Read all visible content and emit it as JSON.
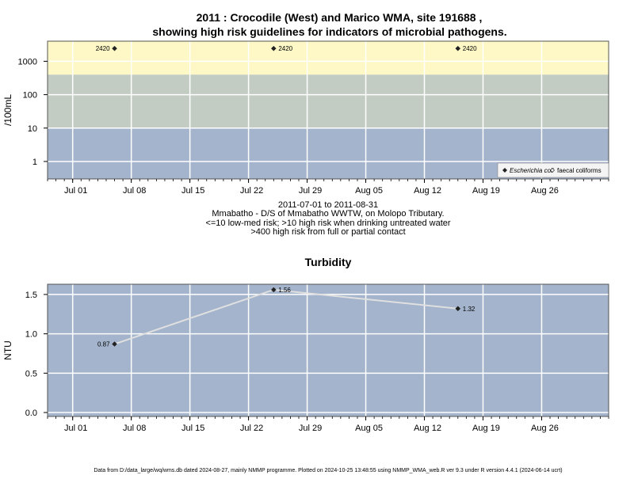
{
  "top_title_line1": "2011 : Crocodile (West) and Marico WMA, site 191688 ,",
  "top_title_line2": "showing high risk guidelines for indicators of microbial pathogens.",
  "caption_lines": [
    "2011-07-01 to 2011-08-31",
    "Mmabatho - D/S of Mmabatho WWTW, on Molopo Tributary.",
    "<=10 low-med risk; >10 high risk when drinking untreated water",
    ">400 high risk from full or partial contact"
  ],
  "footer": "Data from D:/data_large/wq/wms.db dated 2024-08-27, mainly NMMP programme. Plotted on 2024-10-25 13:48:55 using NMMP_WMA_web.R ver 9.3 under R version 4.4.1 (2024-06-14 ucrt)",
  "colors": {
    "band_high": "#fdf8c6",
    "band_mid": "#c3ccc3",
    "band_low": "#a3b4cc",
    "line": "#e0e0e0",
    "point": "#222222"
  },
  "chart_data": [
    {
      "type": "scatter",
      "ylabel": "/100mL",
      "yscale": "log",
      "yticks": [
        1,
        10,
        100,
        1000
      ],
      "ylim": [
        0.3,
        4000
      ],
      "xlim": [
        "2011-06-28",
        "2011-09-03"
      ],
      "xticks": [
        "Jul 01",
        "Jul 08",
        "Jul 15",
        "Jul 22",
        "Jul 29",
        "Aug 05",
        "Aug 12",
        "Aug 19",
        "Aug 26"
      ],
      "xtick_dates": [
        "2011-07-01",
        "2011-07-08",
        "2011-07-15",
        "2011-07-22",
        "2011-07-29",
        "2011-08-05",
        "2011-08-12",
        "2011-08-19",
        "2011-08-26"
      ],
      "bands": [
        {
          "from": 0.3,
          "to": 10,
          "color": "#a3b4cc"
        },
        {
          "from": 10,
          "to": 400,
          "color": "#c3ccc3"
        },
        {
          "from": 400,
          "to": 4000,
          "color": "#fdf8c6"
        }
      ],
      "legend_position": "bottom-right",
      "series": [
        {
          "name": "Escherichia coli",
          "marker": "filled-diamond",
          "x": [
            "2011-07-06",
            "2011-07-25",
            "2011-08-16"
          ],
          "y": [
            2420,
            2420,
            2420
          ],
          "labels": [
            "2420",
            "2420",
            "2420"
          ]
        },
        {
          "name": "faecal coliforms",
          "marker": "open-diamond",
          "x": [],
          "y": [],
          "labels": []
        }
      ]
    },
    {
      "type": "line",
      "title": "Turbidity",
      "ylabel": "NTU",
      "yticks": [
        0.0,
        0.5,
        1.0,
        1.5
      ],
      "ytick_labels": [
        "0.0",
        "0.5",
        "1.0",
        "1.5"
      ],
      "ylim": [
        -0.05,
        1.63
      ],
      "xlim": [
        "2011-06-28",
        "2011-09-03"
      ],
      "xticks": [
        "Jul 01",
        "Jul 08",
        "Jul 15",
        "Jul 22",
        "Jul 29",
        "Aug 05",
        "Aug 12",
        "Aug 19",
        "Aug 26"
      ],
      "xtick_dates": [
        "2011-07-01",
        "2011-07-08",
        "2011-07-15",
        "2011-07-22",
        "2011-07-29",
        "2011-08-05",
        "2011-08-12",
        "2011-08-19",
        "2011-08-26"
      ],
      "series": [
        {
          "x": [
            "2011-07-06",
            "2011-07-25",
            "2011-08-16"
          ],
          "y": [
            0.87,
            1.56,
            1.32
          ],
          "labels": [
            "0.87",
            "1.56",
            "1.32"
          ]
        }
      ]
    }
  ]
}
